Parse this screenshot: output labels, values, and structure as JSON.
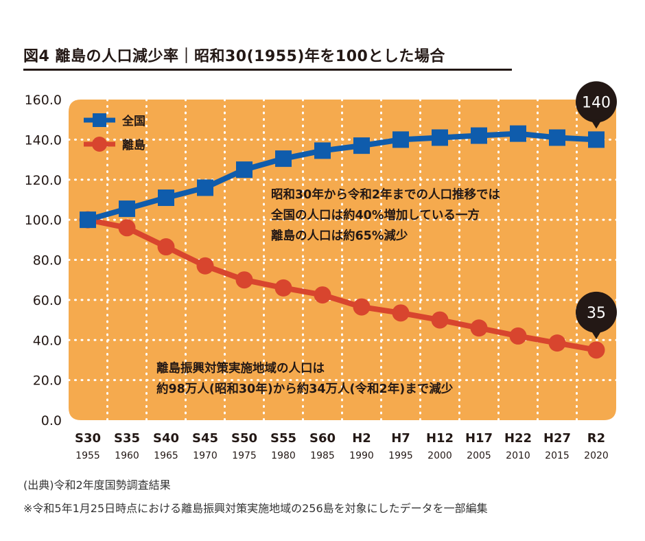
{
  "header": {
    "title": "図4 離島の人口減少率｜昭和30(1955)年を100とした場合"
  },
  "colors": {
    "background_panel": "#F5AA4E",
    "grid": "#FFFFFF",
    "national": "#0F5CAC",
    "islands": "#D8452E",
    "callout": "#231815"
  },
  "chart_data": {
    "type": "line",
    "title": "図4 離島の人口減少率｜昭和30(1955)年を100とした場合",
    "xlabel": "",
    "ylabel": "",
    "ylim": [
      0,
      160
    ],
    "yticks": [
      "0.0",
      "20.0",
      "40.0",
      "60.0",
      "80.0",
      "100.0",
      "120.0",
      "140.0",
      "160.0"
    ],
    "ytick_values": [
      0,
      20,
      40,
      60,
      80,
      100,
      120,
      140,
      160
    ],
    "categories": [
      "S30",
      "S35",
      "S40",
      "S45",
      "S50",
      "S55",
      "S60",
      "H2",
      "H7",
      "H12",
      "H17",
      "H22",
      "H27",
      "R2"
    ],
    "years": [
      "1955",
      "1960",
      "1965",
      "1970",
      "1975",
      "1980",
      "1985",
      "1990",
      "1995",
      "2000",
      "2005",
      "2010",
      "2015",
      "2020"
    ],
    "grid": true,
    "legend_position": "top-left",
    "series": [
      {
        "name": "全国",
        "marker": "square",
        "color": "#0F5CAC",
        "values": [
          100,
          105.5,
          111,
          116,
          125,
          130.5,
          134.5,
          137,
          140,
          141,
          142,
          143,
          141,
          140
        ]
      },
      {
        "name": "離島",
        "marker": "circle",
        "color": "#D8452E",
        "values": [
          100,
          96,
          86.5,
          77,
          70,
          66,
          62.5,
          56.5,
          53.5,
          50,
          46,
          42,
          38.5,
          35
        ]
      }
    ],
    "callouts": [
      {
        "series": "全国",
        "label": "140"
      },
      {
        "series": "離島",
        "label": "35"
      }
    ],
    "annotations": [
      {
        "id": "summary",
        "lines": [
          "昭和30年から令和2年までの人口推移では",
          "全国の人口は約40%増加している一方",
          "離島の人口は約65%減少"
        ]
      },
      {
        "id": "islands_pop",
        "lines": [
          "離島振興対策実施地域の人口は",
          "約98万人(昭和30年)から約34万人(令和2年)まで減少"
        ]
      }
    ]
  },
  "footer": {
    "source": "(出典)令和2年度国勢調査結果",
    "note": "※令和5年1月25日時点における離島振興対策実施地域の256島を対象にしたデータを一部編集"
  }
}
